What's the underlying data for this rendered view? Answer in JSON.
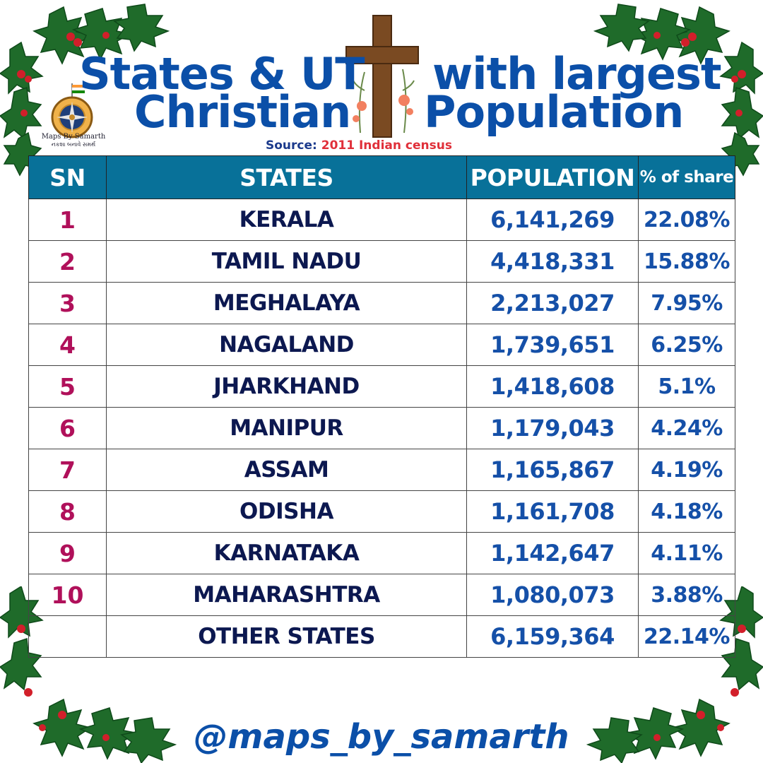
{
  "title": {
    "line1_left": "States & UT",
    "line1_right": "with largest",
    "line2_left": "Christian",
    "line2_right": "Population"
  },
  "source": {
    "label": "Source:",
    "value": "2011 Indian census"
  },
  "logo": {
    "name": "Maps By Samarth",
    "subtitle": "નકશા બનાવે સમર્થ"
  },
  "table": {
    "headers": {
      "sn": "SN",
      "states": "STATES",
      "population": "POPULATION",
      "share": "% of share"
    },
    "rows": [
      {
        "sn": "1",
        "state": "KERALA",
        "population": "6,141,269",
        "share": "22.08%"
      },
      {
        "sn": "2",
        "state": "TAMIL NADU",
        "population": "4,418,331",
        "share": "15.88%"
      },
      {
        "sn": "3",
        "state": "MEGHALAYA",
        "population": "2,213,027",
        "share": "7.95%"
      },
      {
        "sn": "4",
        "state": "NAGALAND",
        "population": "1,739,651",
        "share": "6.25%"
      },
      {
        "sn": "5",
        "state": "JHARKHAND",
        "population": "1,418,608",
        "share": "5.1%"
      },
      {
        "sn": "6",
        "state": "MANIPUR",
        "population": "1,179,043",
        "share": "4.24%"
      },
      {
        "sn": "7",
        "state": "ASSAM",
        "population": "1,165,867",
        "share": "4.19%"
      },
      {
        "sn": "8",
        "state": "ODISHA",
        "population": "1,161,708",
        "share": "4.18%"
      },
      {
        "sn": "9",
        "state": "KARNATAKA",
        "population": "1,142,647",
        "share": "4.11%"
      },
      {
        "sn": "10",
        "state": "MAHARASHTRA",
        "population": "1,080,073",
        "share": "3.88%"
      },
      {
        "sn": "",
        "state": "OTHER STATES",
        "population": "6,159,364",
        "share": "22.14%"
      }
    ]
  },
  "footer": {
    "handle": "@maps_by_samarth"
  },
  "colors": {
    "title": "#0b4fa8",
    "header_bg": "#087199",
    "sn": "#b0105a",
    "state": "#0c1850",
    "number": "#1550a8",
    "source_value": "#e0303a",
    "holly_leaf": "#1f6b2a",
    "berry": "#d21f2a"
  },
  "icons": [
    "holly-icon",
    "cross-icon",
    "compass-logo-icon",
    "india-flag-icon",
    "flower-icon"
  ]
}
